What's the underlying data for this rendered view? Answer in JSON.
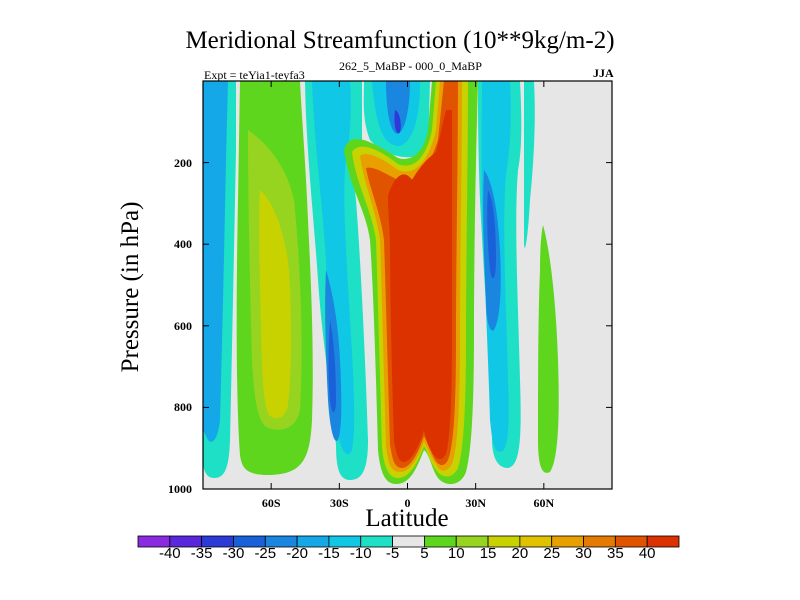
{
  "chart_data": {
    "type": "heatmap",
    "title": "Meridional Streamfunction (10**9kg/m-2)",
    "subtitle_left": "Expt = teYia1-teyfa3",
    "subtitle_center": "262_5_MaBP - 000_0_MaBP",
    "subtitle_right": "JJA",
    "xlabel": "Latitude",
    "ylabel": "Pressure (in hPa)",
    "xlim": [
      -90,
      90
    ],
    "ylim": [
      0,
      1000
    ],
    "y_reversed": true,
    "x_ticks": [
      {
        "value": -60,
        "label": "60S"
      },
      {
        "value": -30,
        "label": "30S"
      },
      {
        "value": 0,
        "label": "0"
      },
      {
        "value": 30,
        "label": "30N"
      },
      {
        "value": 60,
        "label": "60N"
      }
    ],
    "y_ticks": [
      {
        "value": 200,
        "label": "200"
      },
      {
        "value": 400,
        "label": "400"
      },
      {
        "value": 600,
        "label": "600"
      },
      {
        "value": 800,
        "label": "800"
      },
      {
        "value": 1000,
        "label": "1000"
      }
    ],
    "colorbar": {
      "levels": [
        -40,
        -35,
        -30,
        -25,
        -20,
        -15,
        -10,
        -5,
        5,
        10,
        15,
        20,
        25,
        30,
        35,
        40
      ],
      "labels": [
        "-40",
        "-35",
        "-30",
        "-25",
        "-20",
        "-15",
        "-10",
        "-5",
        "5",
        "10",
        "15",
        "20",
        "25",
        "30",
        "35",
        "40"
      ],
      "colors": [
        "#8a2be2",
        "#5a28dc",
        "#2c3ad8",
        "#1a60d8",
        "#1a86e0",
        "#14a8e8",
        "#10c8e6",
        "#1ee0c6",
        "#e6e6e6",
        "#5ed61e",
        "#96d420",
        "#c8d200",
        "#e0c200",
        "#e8a000",
        "#e47a00",
        "#e05400",
        "#dc3200"
      ]
    },
    "features": [
      {
        "name": "tropical-positive-cell",
        "lat_range": [
          -20,
          22
        ],
        "p_range": [
          150,
          980
        ],
        "peak": 40
      },
      {
        "name": "mid-latitude-negative-cell-south",
        "lat_range": [
          -42,
          -22
        ],
        "p_range": [
          50,
          940
        ],
        "peak": -30
      },
      {
        "name": "high-latitude-positive-cell-south",
        "lat_range": [
          -78,
          -48
        ],
        "p_range": [
          20,
          960
        ],
        "peak": 20
      },
      {
        "name": "southern-polar-negative-cell",
        "lat_range": [
          -90,
          -78
        ],
        "p_range": [
          20,
          960
        ],
        "peak": -15
      },
      {
        "name": "northern-negative-cell",
        "lat_range": [
          25,
          37
        ],
        "p_range": [
          20,
          960
        ],
        "peak": -30
      },
      {
        "name": "northern-positive-cell",
        "lat_range": [
          56,
          62
        ],
        "p_range": [
          350,
          960
        ],
        "peak": 10
      }
    ]
  }
}
